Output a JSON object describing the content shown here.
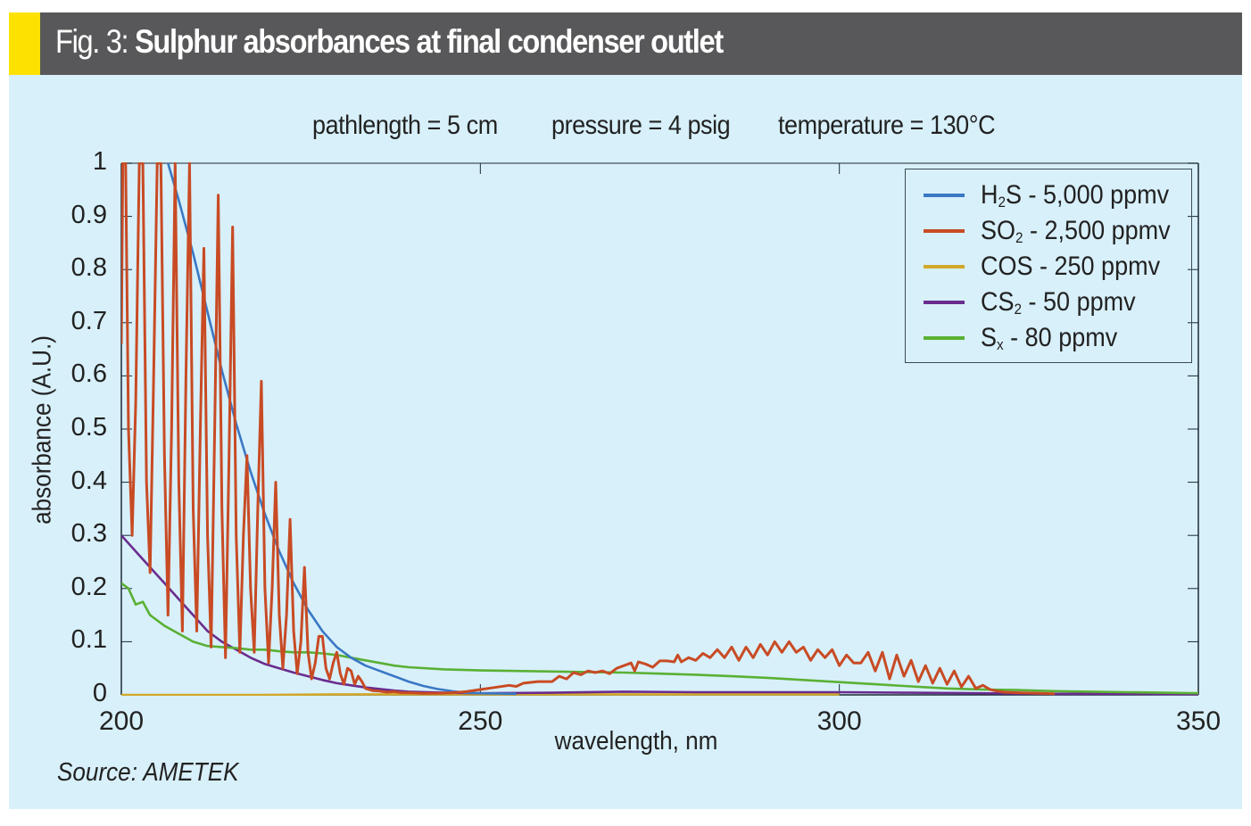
{
  "header": {
    "prefix": "Fig. 3:",
    "title": "Sulphur absorbances at final condenser outlet",
    "accent_color": "#fde100",
    "bar_color": "#58585a"
  },
  "source": "Source: AMETEK",
  "conditions": [
    "pathlength = 5 cm",
    "pressure = 4 psig",
    "temperature = 130°C"
  ],
  "chart_data": {
    "type": "line",
    "title": "Sulphur absorbances at final condenser outlet",
    "subtitle": "pathlength = 5 cm   pressure = 4 psig   temperature = 130°C",
    "xlabel": "wavelength, nm",
    "ylabel": "absorbance (A.U.)",
    "xlim": [
      200,
      350
    ],
    "ylim": [
      0,
      1
    ],
    "xticks": [
      200,
      250,
      300,
      350
    ],
    "yticks": [
      0,
      0.1,
      0.2,
      0.3,
      0.4,
      0.5,
      0.6,
      0.7,
      0.8,
      0.9,
      1
    ],
    "ytick_labels": [
      "0",
      "0.1",
      "0.2",
      "0.3",
      "0.4",
      "0.5",
      "0.6",
      "0.7",
      "0.8",
      "0.9",
      "1"
    ],
    "grid": false,
    "legend_position": "top-right",
    "series": [
      {
        "name": "H2S - 5,000 ppmv",
        "label_main": "H",
        "label_sub": "2",
        "label_rest": "S - 5,000 ppmv",
        "color": "#3a78c4",
        "points": [
          [
            206.5,
            1.0
          ],
          [
            208,
            0.93
          ],
          [
            210,
            0.83
          ],
          [
            212,
            0.72
          ],
          [
            214,
            0.61
          ],
          [
            216,
            0.51
          ],
          [
            218,
            0.42
          ],
          [
            220,
            0.34
          ],
          [
            222,
            0.27
          ],
          [
            224,
            0.21
          ],
          [
            226,
            0.16
          ],
          [
            228,
            0.12
          ],
          [
            230,
            0.09
          ],
          [
            232,
            0.07
          ],
          [
            234,
            0.055
          ],
          [
            236,
            0.045
          ],
          [
            238,
            0.035
          ],
          [
            240,
            0.025
          ],
          [
            242,
            0.017
          ],
          [
            244,
            0.011
          ],
          [
            246,
            0.007
          ],
          [
            248,
            0.004
          ],
          [
            250,
            0.003
          ],
          [
            255,
            0.002
          ]
        ]
      },
      {
        "name": "SO2 - 2,500 ppmv",
        "label_main": "SO",
        "label_sub": "2",
        "label_rest": " - 2,500 ppmv",
        "color": "#c84b24",
        "points": [
          [
            200,
            0.66
          ],
          [
            200.2,
            1.0
          ],
          [
            200.6,
            1.0
          ],
          [
            201,
            0.5
          ],
          [
            201.5,
            0.3
          ],
          [
            202,
            0.55
          ],
          [
            202.5,
            1.0
          ],
          [
            203,
            1.0
          ],
          [
            203.5,
            0.4
          ],
          [
            204,
            0.23
          ],
          [
            204.5,
            0.6
          ],
          [
            205,
            1.0
          ],
          [
            205.5,
            1.0
          ],
          [
            206,
            0.45
          ],
          [
            206.5,
            0.15
          ],
          [
            207,
            0.5
          ],
          [
            207.5,
            1.0
          ],
          [
            208,
            0.4
          ],
          [
            208.5,
            0.12
          ],
          [
            209,
            0.6
          ],
          [
            209.5,
            1.0
          ],
          [
            210,
            0.35
          ],
          [
            210.5,
            0.12
          ],
          [
            211,
            0.5
          ],
          [
            211.5,
            0.84
          ],
          [
            212,
            0.3
          ],
          [
            212.5,
            0.09
          ],
          [
            213,
            0.5
          ],
          [
            213.5,
            0.94
          ],
          [
            214,
            0.35
          ],
          [
            214.5,
            0.07
          ],
          [
            215,
            0.45
          ],
          [
            215.5,
            0.88
          ],
          [
            216,
            0.3
          ],
          [
            216.5,
            0.08
          ],
          [
            217,
            0.3
          ],
          [
            217.5,
            0.45
          ],
          [
            218,
            0.2
          ],
          [
            218.5,
            0.08
          ],
          [
            219,
            0.35
          ],
          [
            219.5,
            0.59
          ],
          [
            220,
            0.2
          ],
          [
            220.5,
            0.06
          ],
          [
            221,
            0.2
          ],
          [
            221.5,
            0.4
          ],
          [
            222,
            0.15
          ],
          [
            222.5,
            0.05
          ],
          [
            223,
            0.15
          ],
          [
            223.5,
            0.33
          ],
          [
            224,
            0.12
          ],
          [
            224.5,
            0.04
          ],
          [
            225,
            0.1
          ],
          [
            225.5,
            0.24
          ],
          [
            226,
            0.08
          ],
          [
            226.5,
            0.03
          ],
          [
            227,
            0.06
          ],
          [
            227.5,
            0.11
          ],
          [
            228,
            0.11
          ],
          [
            228.5,
            0.05
          ],
          [
            229,
            0.03
          ],
          [
            229.5,
            0.06
          ],
          [
            230,
            0.08
          ],
          [
            230.5,
            0.04
          ],
          [
            231,
            0.02
          ],
          [
            231.5,
            0.05
          ],
          [
            232,
            0.045
          ],
          [
            232.5,
            0.02
          ],
          [
            233,
            0.035
          ],
          [
            233.5,
            0.025
          ],
          [
            234,
            0.012
          ],
          [
            235,
            0.008
          ],
          [
            236,
            0.007
          ],
          [
            237,
            0.005
          ],
          [
            238,
            0.006
          ],
          [
            239,
            0.004
          ],
          [
            240,
            0.004
          ],
          [
            242,
            0.003
          ],
          [
            244,
            0.003
          ],
          [
            246,
            0.004
          ],
          [
            248,
            0.006
          ],
          [
            250,
            0.01
          ],
          [
            252,
            0.014
          ],
          [
            254,
            0.018
          ],
          [
            255,
            0.016
          ],
          [
            256,
            0.022
          ],
          [
            258,
            0.025
          ],
          [
            260,
            0.025
          ],
          [
            261,
            0.035
          ],
          [
            262,
            0.03
          ],
          [
            263,
            0.042
          ],
          [
            264,
            0.038
          ],
          [
            265,
            0.045
          ],
          [
            266,
            0.042
          ],
          [
            267,
            0.045
          ],
          [
            268,
            0.04
          ],
          [
            269,
            0.05
          ],
          [
            270,
            0.055
          ],
          [
            271,
            0.06
          ],
          [
            271.5,
            0.045
          ],
          [
            272,
            0.062
          ],
          [
            273,
            0.058
          ],
          [
            274,
            0.052
          ],
          [
            275,
            0.064
          ],
          [
            276,
            0.064
          ],
          [
            277,
            0.062
          ],
          [
            277.5,
            0.075
          ],
          [
            278,
            0.062
          ],
          [
            279,
            0.07
          ],
          [
            280,
            0.065
          ],
          [
            281,
            0.078
          ],
          [
            282,
            0.07
          ],
          [
            283,
            0.085
          ],
          [
            284,
            0.07
          ],
          [
            285,
            0.09
          ],
          [
            286,
            0.065
          ],
          [
            287,
            0.09
          ],
          [
            288,
            0.07
          ],
          [
            289,
            0.095
          ],
          [
            290,
            0.075
          ],
          [
            291,
            0.1
          ],
          [
            292,
            0.08
          ],
          [
            293,
            0.1
          ],
          [
            294,
            0.08
          ],
          [
            295,
            0.09
          ],
          [
            296,
            0.065
          ],
          [
            297,
            0.085
          ],
          [
            298,
            0.07
          ],
          [
            299,
            0.085
          ],
          [
            300,
            0.055
          ],
          [
            301,
            0.075
          ],
          [
            302,
            0.06
          ],
          [
            303,
            0.06
          ],
          [
            304,
            0.08
          ],
          [
            305,
            0.045
          ],
          [
            306,
            0.08
          ],
          [
            307,
            0.03
          ],
          [
            308,
            0.075
          ],
          [
            309,
            0.035
          ],
          [
            310,
            0.065
          ],
          [
            311,
            0.025
          ],
          [
            312,
            0.055
          ],
          [
            313,
            0.022
          ],
          [
            314,
            0.05
          ],
          [
            315,
            0.02
          ],
          [
            316,
            0.045
          ],
          [
            317,
            0.015
          ],
          [
            318,
            0.035
          ],
          [
            319,
            0.012
          ],
          [
            320,
            0.018
          ],
          [
            321,
            0.01
          ],
          [
            322,
            0.007
          ],
          [
            323,
            0.005
          ],
          [
            325,
            0.004
          ],
          [
            328,
            0.003
          ],
          [
            330,
            0.002
          ]
        ]
      },
      {
        "name": "COS - 250 ppmv",
        "label_main": "COS - 250 ppmv",
        "label_sub": "",
        "label_rest": "",
        "color": "#d2a72a",
        "points": [
          [
            200,
            0.0
          ],
          [
            220,
            0.0
          ],
          [
            230,
            0.001
          ],
          [
            250,
            0.001
          ],
          [
            270,
            0.001
          ],
          [
            300,
            0.001
          ]
        ]
      },
      {
        "name": "CS2 - 50 ppmv",
        "label_main": "CS",
        "label_sub": "2",
        "label_rest": " - 50 ppmv",
        "color": "#6a2c8e",
        "points": [
          [
            200,
            0.3
          ],
          [
            202,
            0.27
          ],
          [
            204,
            0.24
          ],
          [
            206,
            0.21
          ],
          [
            208,
            0.18
          ],
          [
            210,
            0.15
          ],
          [
            212,
            0.12
          ],
          [
            214,
            0.1
          ],
          [
            216,
            0.085
          ],
          [
            218,
            0.07
          ],
          [
            220,
            0.058
          ],
          [
            222,
            0.05
          ],
          [
            224,
            0.042
          ],
          [
            226,
            0.035
          ],
          [
            228,
            0.028
          ],
          [
            230,
            0.022
          ],
          [
            232,
            0.018
          ],
          [
            234,
            0.014
          ],
          [
            236,
            0.011
          ],
          [
            238,
            0.008
          ],
          [
            240,
            0.006
          ],
          [
            245,
            0.004
          ],
          [
            250,
            0.003
          ],
          [
            260,
            0.004
          ],
          [
            270,
            0.006
          ],
          [
            280,
            0.005
          ],
          [
            290,
            0.005
          ],
          [
            300,
            0.005
          ],
          [
            310,
            0.004
          ],
          [
            320,
            0.003
          ],
          [
            330,
            0.002
          ],
          [
            340,
            0.002
          ],
          [
            350,
            0.001
          ]
        ]
      },
      {
        "name": "Sx - 80 ppmv",
        "label_main": "S",
        "label_sub": "x",
        "label_rest": " - 80 ppmv",
        "color": "#5ab034",
        "points": [
          [
            200,
            0.21
          ],
          [
            201,
            0.2
          ],
          [
            202,
            0.17
          ],
          [
            203,
            0.175
          ],
          [
            204,
            0.15
          ],
          [
            206,
            0.13
          ],
          [
            208,
            0.115
          ],
          [
            210,
            0.1
          ],
          [
            212,
            0.092
          ],
          [
            214,
            0.09
          ],
          [
            216,
            0.088
          ],
          [
            218,
            0.085
          ],
          [
            220,
            0.085
          ],
          [
            222,
            0.082
          ],
          [
            224,
            0.08
          ],
          [
            226,
            0.08
          ],
          [
            228,
            0.078
          ],
          [
            230,
            0.075
          ],
          [
            232,
            0.07
          ],
          [
            234,
            0.065
          ],
          [
            236,
            0.06
          ],
          [
            238,
            0.055
          ],
          [
            240,
            0.052
          ],
          [
            245,
            0.048
          ],
          [
            250,
            0.046
          ],
          [
            255,
            0.045
          ],
          [
            260,
            0.044
          ],
          [
            265,
            0.043
          ],
          [
            270,
            0.042
          ],
          [
            275,
            0.04
          ],
          [
            280,
            0.038
          ],
          [
            285,
            0.035
          ],
          [
            290,
            0.032
          ],
          [
            295,
            0.028
          ],
          [
            300,
            0.024
          ],
          [
            305,
            0.02
          ],
          [
            310,
            0.016
          ],
          [
            315,
            0.012
          ],
          [
            320,
            0.01
          ],
          [
            325,
            0.009
          ],
          [
            330,
            0.007
          ],
          [
            335,
            0.006
          ],
          [
            340,
            0.005
          ],
          [
            345,
            0.004
          ],
          [
            350,
            0.003
          ]
        ]
      }
    ]
  }
}
